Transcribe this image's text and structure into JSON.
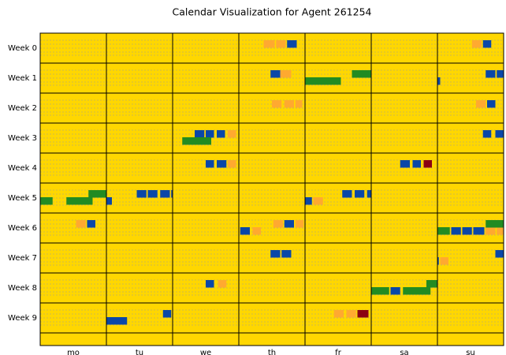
{
  "chart_data": {
    "type": "calendar",
    "title": "Calendar Visualization for Agent 261254",
    "categories": [
      "mo",
      "tu",
      "we",
      "th",
      "fr",
      "sa",
      "su"
    ],
    "weeks": [
      "Week 0",
      "Week 1",
      "Week 2",
      "Week 3",
      "Week 4",
      "Week 5",
      "Week 6",
      "Week 7",
      "Week 8",
      "Week 9"
    ],
    "xlim": [
      0,
      168
    ],
    "background": "#ffd700",
    "events": [
      {
        "week": 0,
        "lane": 0,
        "start": 81,
        "end": 85,
        "color": "#ffa930"
      },
      {
        "week": 0,
        "lane": 0,
        "start": 85.5,
        "end": 89,
        "color": "#ffa930"
      },
      {
        "week": 0,
        "lane": 0,
        "start": 89.5,
        "end": 93,
        "color": "#0a47a8"
      },
      {
        "week": 0,
        "lane": 0,
        "start": 156.5,
        "end": 160,
        "color": "#ffa930"
      },
      {
        "week": 0,
        "lane": 0,
        "start": 160.5,
        "end": 163.5,
        "color": "#0a47a8"
      },
      {
        "week": 1,
        "lane": 0,
        "start": 83.5,
        "end": 87,
        "color": "#0a47a8"
      },
      {
        "week": 1,
        "lane": 0,
        "start": 87,
        "end": 91,
        "color": "#ffa930"
      },
      {
        "week": 1,
        "lane": 1,
        "start": 96,
        "end": 109,
        "color": "#228b22"
      },
      {
        "week": 1,
        "lane": 0,
        "start": 113,
        "end": 120,
        "color": "#228b22"
      },
      {
        "week": 1,
        "lane": 1,
        "start": 144,
        "end": 145,
        "color": "#0a47a8"
      },
      {
        "week": 1,
        "lane": 0,
        "start": 161.5,
        "end": 165,
        "color": "#0a47a8"
      },
      {
        "week": 1,
        "lane": 0,
        "start": 165.5,
        "end": 168,
        "color": "#0a47a8"
      },
      {
        "week": 2,
        "lane": 0,
        "start": 84,
        "end": 87.5,
        "color": "#ffa930"
      },
      {
        "week": 2,
        "lane": 0,
        "start": 88.5,
        "end": 92,
        "color": "#ffa930"
      },
      {
        "week": 2,
        "lane": 0,
        "start": 92.5,
        "end": 95,
        "color": "#ffa930"
      },
      {
        "week": 2,
        "lane": 0,
        "start": 158,
        "end": 161.5,
        "color": "#ffa930"
      },
      {
        "week": 2,
        "lane": 0,
        "start": 162,
        "end": 165,
        "color": "#0a47a8"
      },
      {
        "week": 3,
        "lane": 0,
        "start": 56,
        "end": 59.5,
        "color": "#0a47a8"
      },
      {
        "week": 3,
        "lane": 0,
        "start": 60,
        "end": 63,
        "color": "#0a47a8"
      },
      {
        "week": 3,
        "lane": 0,
        "start": 64,
        "end": 67,
        "color": "#0a47a8"
      },
      {
        "week": 3,
        "lane": 0,
        "start": 68,
        "end": 71,
        "color": "#ffa930"
      },
      {
        "week": 3,
        "lane": 1,
        "start": 51.5,
        "end": 62,
        "color": "#228b22"
      },
      {
        "week": 3,
        "lane": 0,
        "start": 160.5,
        "end": 163.5,
        "color": "#0a47a8"
      },
      {
        "week": 3,
        "lane": 0,
        "start": 165,
        "end": 168,
        "color": "#0a47a8"
      },
      {
        "week": 4,
        "lane": 0,
        "start": 60,
        "end": 63,
        "color": "#0a47a8"
      },
      {
        "week": 4,
        "lane": 0,
        "start": 64,
        "end": 67.5,
        "color": "#0a47a8"
      },
      {
        "week": 4,
        "lane": 0,
        "start": 68,
        "end": 71,
        "color": "#ffa930"
      },
      {
        "week": 4,
        "lane": 0,
        "start": 130.5,
        "end": 134,
        "color": "#0a47a8"
      },
      {
        "week": 4,
        "lane": 0,
        "start": 135,
        "end": 138,
        "color": "#0a47a8"
      },
      {
        "week": 4,
        "lane": 0,
        "start": 139,
        "end": 142,
        "color": "#8b0012"
      },
      {
        "week": 5,
        "lane": 0,
        "start": 17.5,
        "end": 24,
        "color": "#228b22"
      },
      {
        "week": 5,
        "lane": 1,
        "start": 0,
        "end": 4.5,
        "color": "#228b22"
      },
      {
        "week": 5,
        "lane": 1,
        "start": 9.5,
        "end": 19,
        "color": "#228b22"
      },
      {
        "week": 5,
        "lane": 1,
        "start": 24,
        "end": 26,
        "color": "#0a47a8"
      },
      {
        "week": 5,
        "lane": 0,
        "start": 35,
        "end": 38.5,
        "color": "#0a47a8"
      },
      {
        "week": 5,
        "lane": 0,
        "start": 39,
        "end": 42.5,
        "color": "#0a47a8"
      },
      {
        "week": 5,
        "lane": 0,
        "start": 43.5,
        "end": 47,
        "color": "#0a47a8"
      },
      {
        "week": 5,
        "lane": 0,
        "start": 47.5,
        "end": 48,
        "color": "#0a47a8"
      },
      {
        "week": 5,
        "lane": 1,
        "start": 96,
        "end": 98.5,
        "color": "#0a47a8"
      },
      {
        "week": 5,
        "lane": 1,
        "start": 99,
        "end": 102.5,
        "color": "#ffa930"
      },
      {
        "week": 5,
        "lane": 0,
        "start": 109.5,
        "end": 113,
        "color": "#0a47a8"
      },
      {
        "week": 5,
        "lane": 0,
        "start": 114,
        "end": 117.5,
        "color": "#0a47a8"
      },
      {
        "week": 5,
        "lane": 0,
        "start": 118.5,
        "end": 120,
        "color": "#0a47a8"
      },
      {
        "week": 6,
        "lane": 0,
        "start": 13,
        "end": 16.5,
        "color": "#ffa930"
      },
      {
        "week": 6,
        "lane": 0,
        "start": 17,
        "end": 20,
        "color": "#0a47a8"
      },
      {
        "week": 6,
        "lane": 1,
        "start": 72.5,
        "end": 76,
        "color": "#0a47a8"
      },
      {
        "week": 6,
        "lane": 1,
        "start": 77,
        "end": 80,
        "color": "#ffa930"
      },
      {
        "week": 6,
        "lane": 0,
        "start": 84.5,
        "end": 88,
        "color": "#ffa930"
      },
      {
        "week": 6,
        "lane": 0,
        "start": 88.5,
        "end": 92,
        "color": "#0a47a8"
      },
      {
        "week": 6,
        "lane": 0,
        "start": 92.5,
        "end": 95.5,
        "color": "#ffa930"
      },
      {
        "week": 6,
        "lane": 1,
        "start": 144,
        "end": 148.5,
        "color": "#228b22"
      },
      {
        "week": 6,
        "lane": 1,
        "start": 149,
        "end": 152.5,
        "color": "#0a47a8"
      },
      {
        "week": 6,
        "lane": 1,
        "start": 153,
        "end": 156.5,
        "color": "#0a47a8"
      },
      {
        "week": 6,
        "lane": 1,
        "start": 157,
        "end": 161,
        "color": "#0a47a8"
      },
      {
        "week": 6,
        "lane": 1,
        "start": 161.5,
        "end": 165,
        "color": "#ffa930"
      },
      {
        "week": 6,
        "lane": 1,
        "start": 165.5,
        "end": 168,
        "color": "#ffa930"
      },
      {
        "week": 6,
        "lane": 0,
        "start": 161.5,
        "end": 168,
        "color": "#228b22"
      },
      {
        "week": 7,
        "lane": 0,
        "start": 83.5,
        "end": 87,
        "color": "#0a47a8"
      },
      {
        "week": 7,
        "lane": 0,
        "start": 87.5,
        "end": 91,
        "color": "#0a47a8"
      },
      {
        "week": 7,
        "lane": 1,
        "start": 144,
        "end": 144.5,
        "color": "#0a47a8"
      },
      {
        "week": 7,
        "lane": 1,
        "start": 145,
        "end": 148,
        "color": "#ffa930"
      },
      {
        "week": 7,
        "lane": 0,
        "start": 165,
        "end": 168,
        "color": "#0a47a8"
      },
      {
        "week": 8,
        "lane": 0,
        "start": 60,
        "end": 63,
        "color": "#0a47a8"
      },
      {
        "week": 8,
        "lane": 0,
        "start": 64.5,
        "end": 67.5,
        "color": "#ffa930"
      },
      {
        "week": 8,
        "lane": 1,
        "start": 120,
        "end": 126.5,
        "color": "#228b22"
      },
      {
        "week": 8,
        "lane": 1,
        "start": 127,
        "end": 130.5,
        "color": "#0a47a8"
      },
      {
        "week": 8,
        "lane": 1,
        "start": 131.5,
        "end": 141.5,
        "color": "#228b22"
      },
      {
        "week": 8,
        "lane": 0,
        "start": 140,
        "end": 144,
        "color": "#228b22"
      },
      {
        "week": 9,
        "lane": 1,
        "start": 24,
        "end": 31.5,
        "color": "#0a47a8"
      },
      {
        "week": 9,
        "lane": 0,
        "start": 44.5,
        "end": 47.5,
        "color": "#0a47a8"
      },
      {
        "week": 9,
        "lane": 0,
        "start": 106.5,
        "end": 110,
        "color": "#ffa930"
      },
      {
        "week": 9,
        "lane": 0,
        "start": 111,
        "end": 114.5,
        "color": "#ffa930"
      },
      {
        "week": 9,
        "lane": 0,
        "start": 115,
        "end": 119,
        "color": "#8b0012"
      }
    ]
  }
}
